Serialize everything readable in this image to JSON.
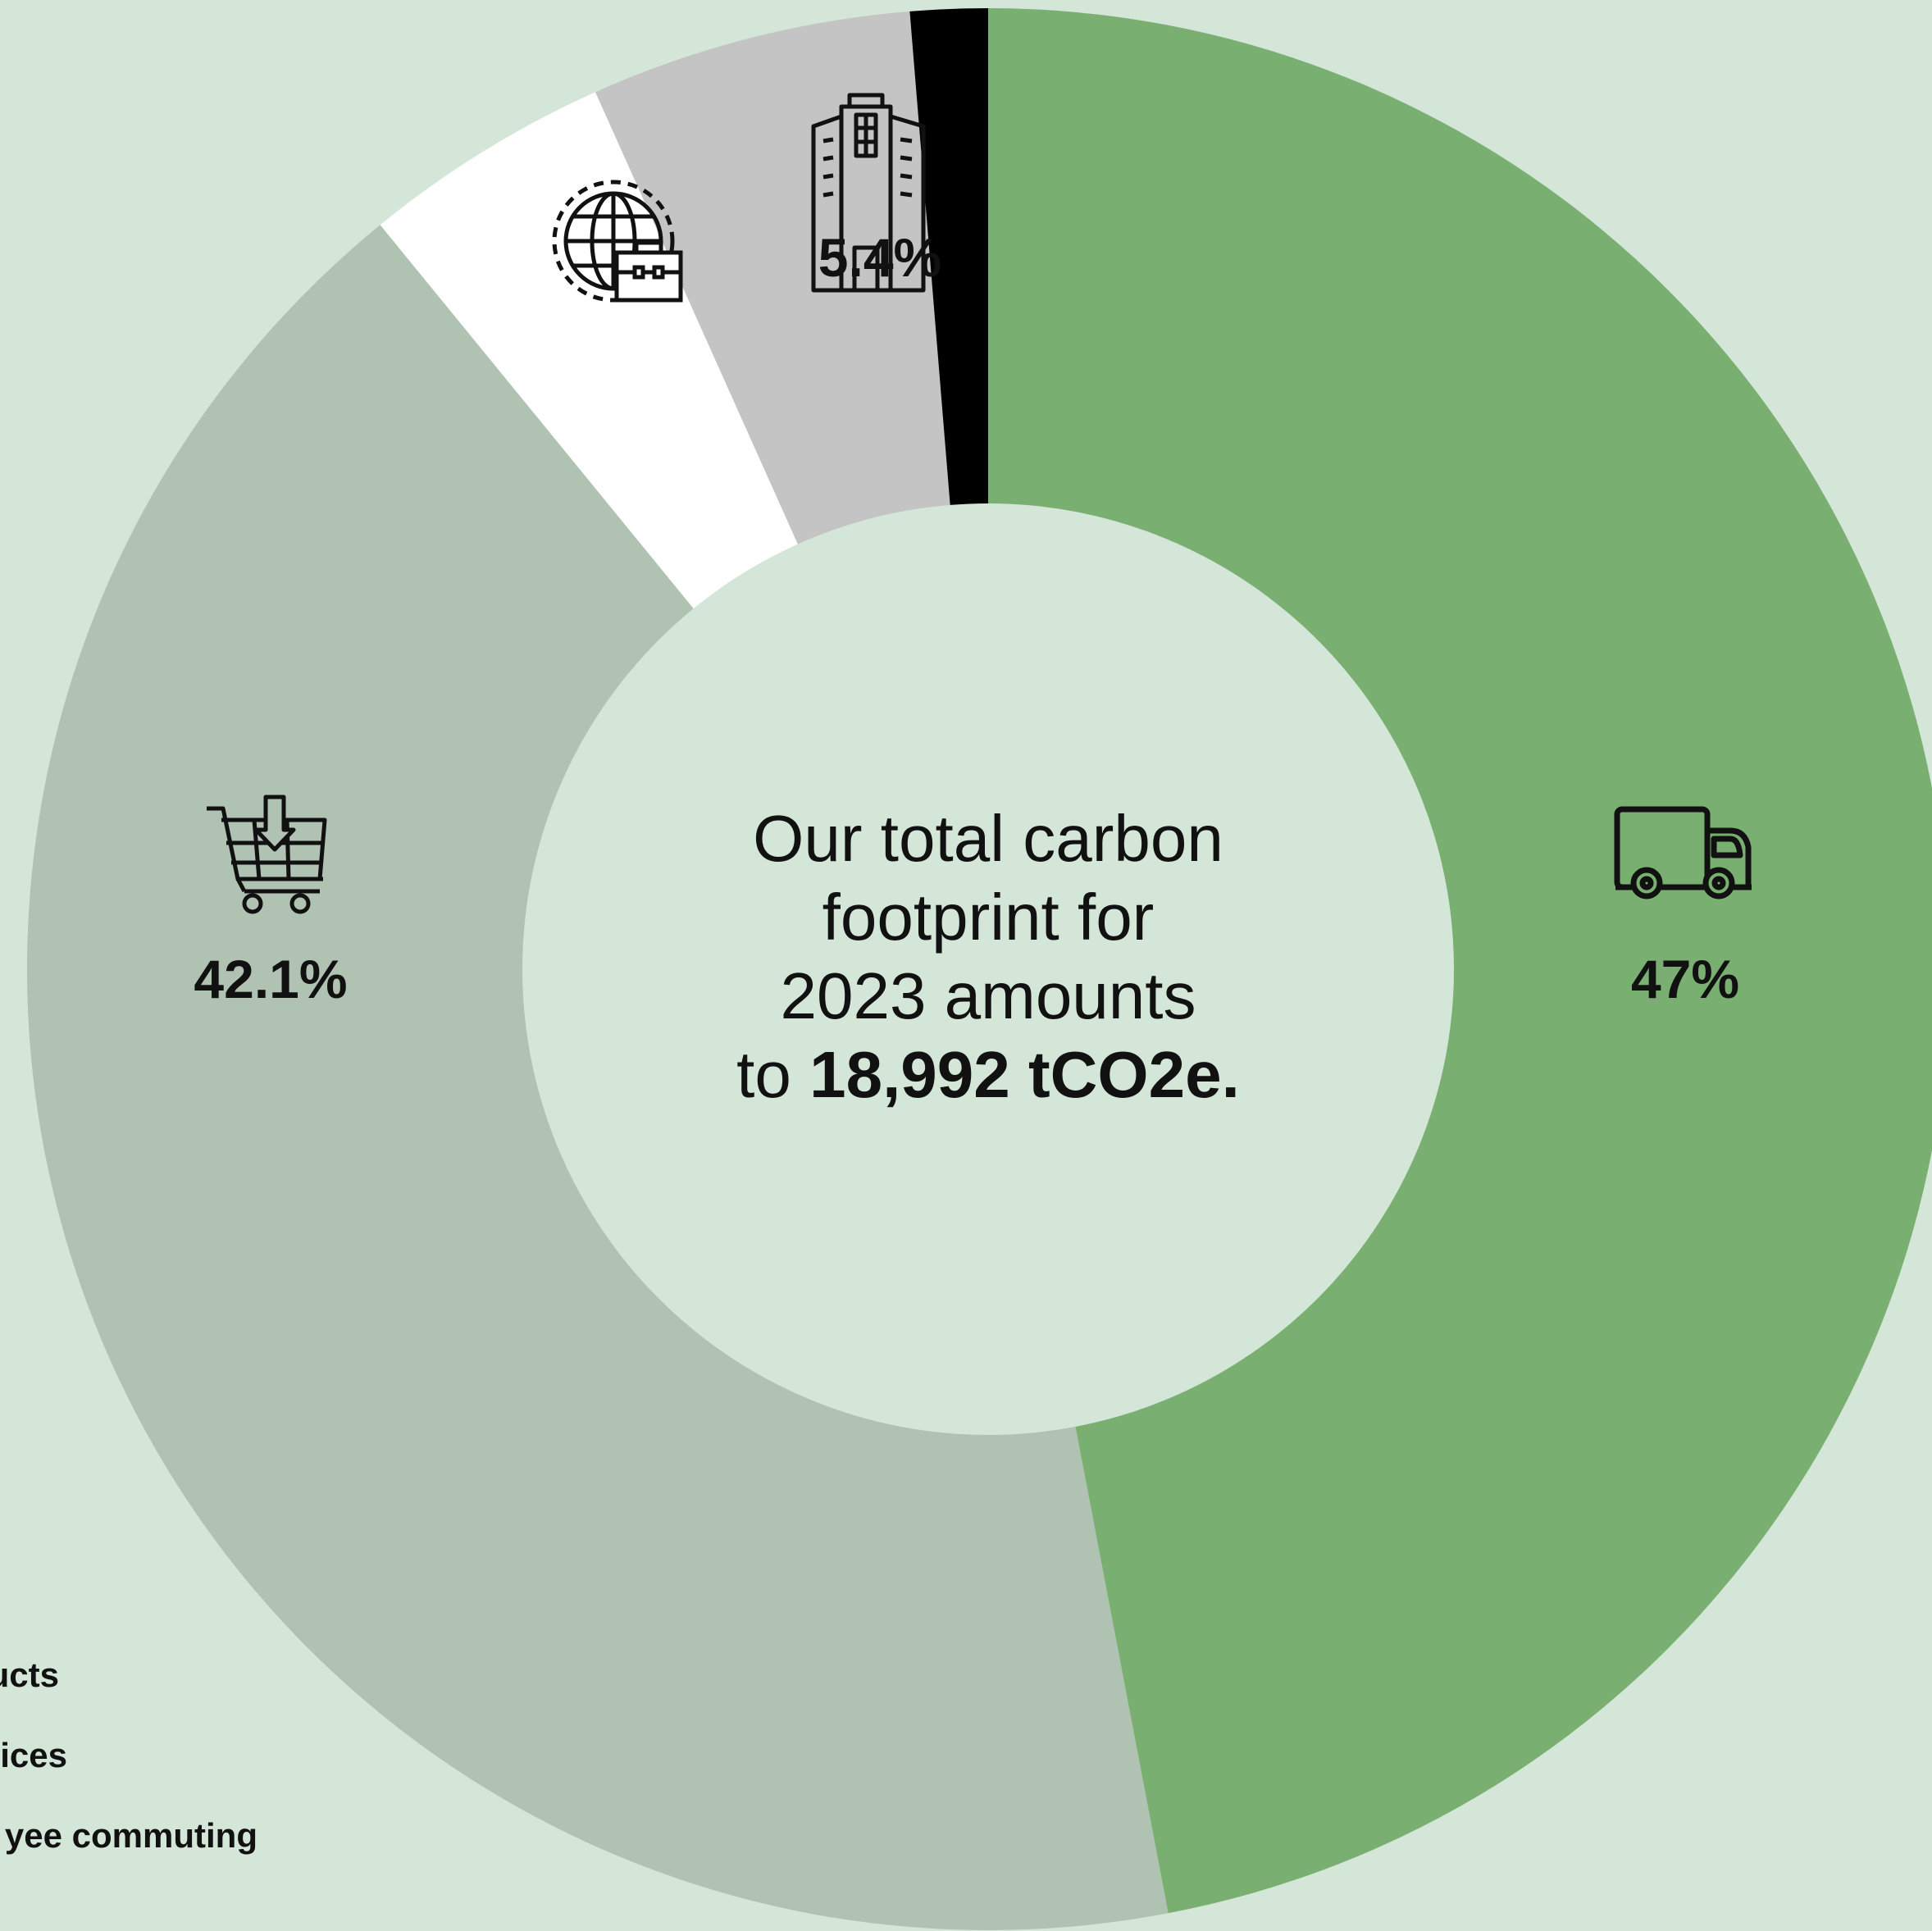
{
  "chart_data": {
    "type": "pie",
    "style": "donut",
    "slices": [
      {
        "label": "",
        "value": 47.0,
        "display": "47%",
        "color": "#7aaf72",
        "icon": "truck-icon"
      },
      {
        "label": "",
        "value": 42.1,
        "display": "42.1%",
        "color": "#b0c3b3",
        "icon": "shopping-cart-icon"
      },
      {
        "label": "",
        "value": 4.2,
        "display": "",
        "color": "#ffffff",
        "icon": "globe-briefcase-icon"
      },
      {
        "label": "",
        "value": 5.4,
        "display": "5.4%",
        "color": "#c4c4c4",
        "icon": "office-building-icon"
      },
      {
        "label": "",
        "value": 1.3,
        "display": "",
        "color": "#000000",
        "icon": ""
      }
    ],
    "center_text": {
      "line1": "Our total carbon",
      "line2": "footprint for",
      "line3": "2023 amounts",
      "line4_prefix": "to ",
      "line4_bold": "18,992 tCO2e."
    },
    "legend": [
      "ucts",
      "ices",
      "yee commuting"
    ]
  },
  "colors": {
    "background": "#d3e6d7",
    "text": "#111111"
  }
}
